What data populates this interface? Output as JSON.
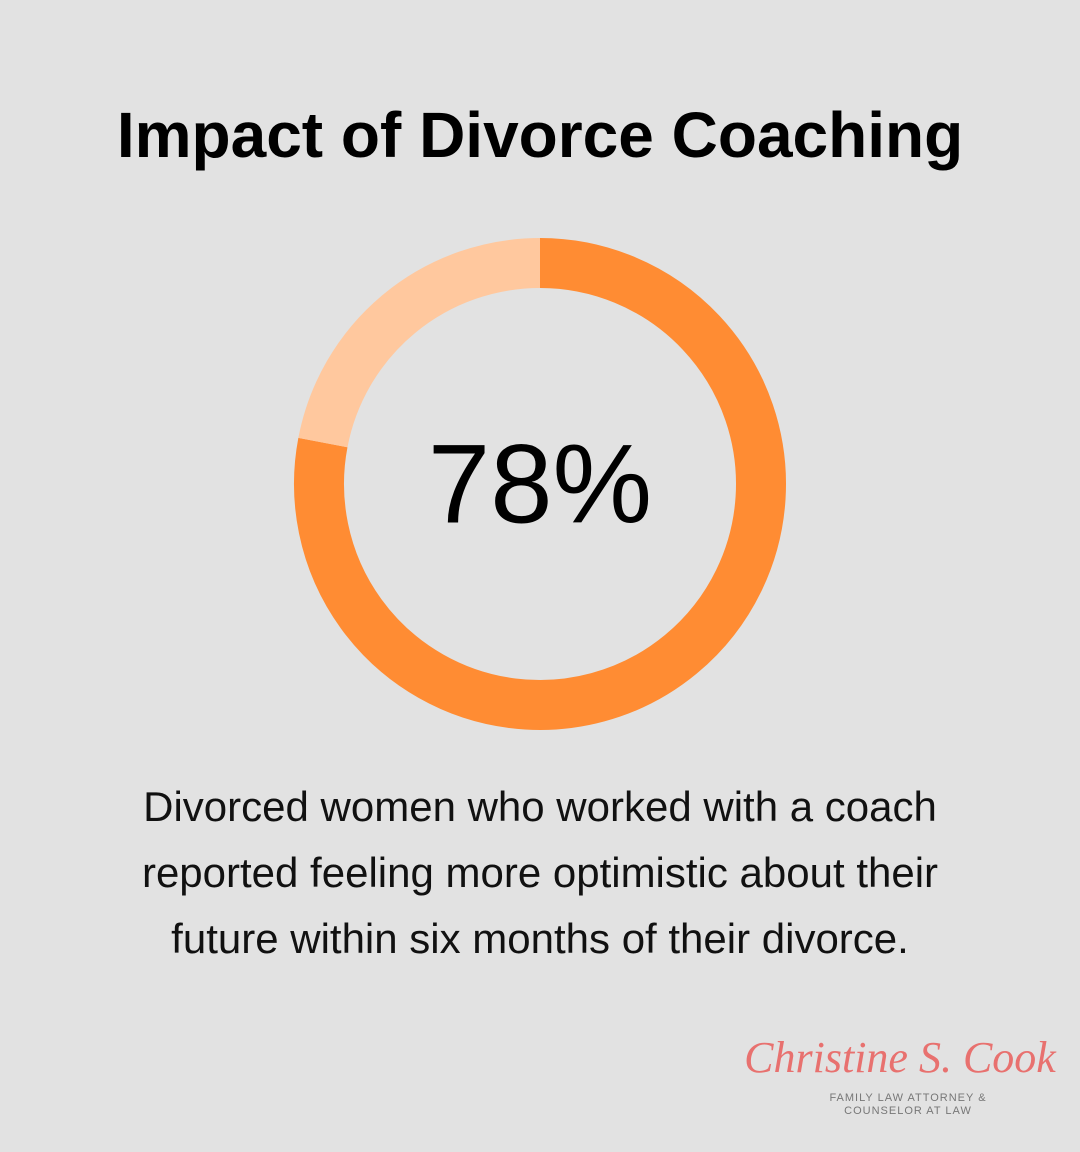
{
  "chart_data": {
    "type": "donut",
    "title": "Impact of Divorce Coaching",
    "values": [
      78,
      22
    ],
    "value_labels": [
      "78%",
      null
    ],
    "colors": [
      "#ff8c33",
      "#ffc89e"
    ],
    "caption": [
      "Divorced women who worked with a coach",
      "reported feeling more optimistic about their",
      "future within six months of their divorce."
    ]
  },
  "logo": {
    "name": "Christine S. Cook",
    "tagline": [
      "FAMILY LAW ATTORNEY &",
      "COUNSELOR AT LAW"
    ]
  }
}
